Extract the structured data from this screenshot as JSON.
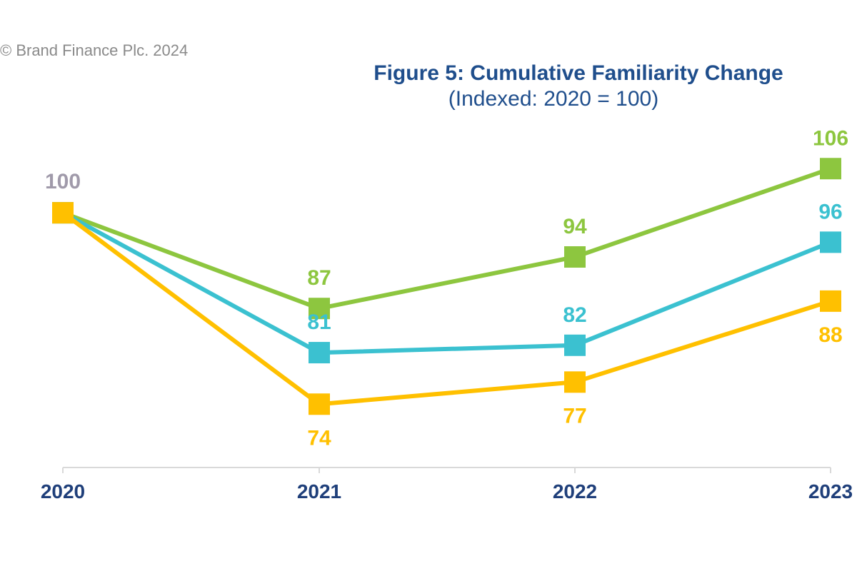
{
  "copyright": "© Brand Finance Plc. 2024",
  "colors": {
    "title": "#1f4e8c",
    "tick_labels": "#1f3f7a",
    "baseline_label": "#a09aaa"
  },
  "chart_data": {
    "type": "line",
    "title": "Figure 5: Cumulative Familiarity Change",
    "subtitle": "(Indexed: 2020 = 100)",
    "xlabel": "",
    "ylabel": "",
    "x": [
      "2020",
      "2021",
      "2022",
      "2023"
    ],
    "ylim": [
      62,
      110
    ],
    "grid": false,
    "legend": "none",
    "baseline_label": "100",
    "series": [
      {
        "color": "#8dc63f",
        "values": [
          100,
          87,
          94,
          106
        ],
        "label_pos": [
          "none",
          "above",
          "above",
          "above"
        ]
      },
      {
        "color": "#3bc1d0",
        "values": [
          100,
          81,
          82,
          96
        ],
        "label_pos": [
          "none",
          "above",
          "above",
          "above"
        ]
      },
      {
        "color": "#ffc000",
        "values": [
          100,
          74,
          77,
          88
        ],
        "label_pos": [
          "none",
          "below",
          "below",
          "below"
        ]
      }
    ]
  }
}
